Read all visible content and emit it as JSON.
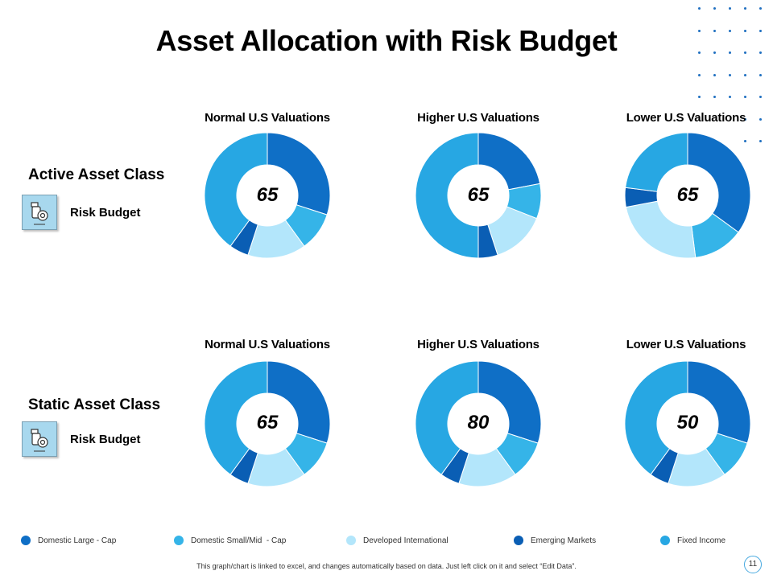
{
  "title": "Asset Allocation with Risk Budget",
  "rows": [
    {
      "label": "Active Asset Class",
      "risk_label": "Risk Budget"
    },
    {
      "label": "Static Asset Class",
      "risk_label": "Risk Budget"
    }
  ],
  "chart_data": [
    {
      "type": "donut",
      "title": "Normal U.S Valuations",
      "center_label": "65",
      "categories": [
        "Domestic Large - Cap",
        "Domestic Small/Mid - Cap",
        "Developed International",
        "Emerging Markets",
        "Fixed Income"
      ],
      "values": [
        30,
        10,
        15,
        5,
        40
      ]
    },
    {
      "type": "donut",
      "title": "Higher U.S Valuations",
      "center_label": "65",
      "categories": [
        "Domestic Large - Cap",
        "Domestic Small/Mid - Cap",
        "Developed International",
        "Emerging Markets",
        "Fixed Income"
      ],
      "values": [
        22,
        9,
        14,
        5,
        50
      ]
    },
    {
      "type": "donut",
      "title": "Lower U.S Valuations",
      "center_label": "65",
      "categories": [
        "Domestic Large - Cap",
        "Domestic Small/Mid - Cap",
        "Developed International",
        "Emerging Markets",
        "Fixed Income"
      ],
      "values": [
        35,
        13,
        24,
        5,
        23
      ]
    },
    {
      "type": "donut",
      "title": "Normal U.S Valuations",
      "center_label": "65",
      "categories": [
        "Domestic Large - Cap",
        "Domestic Small/Mid - Cap",
        "Developed International",
        "Emerging Markets",
        "Fixed Income"
      ],
      "values": [
        30,
        10,
        15,
        5,
        40
      ]
    },
    {
      "type": "donut",
      "title": "Higher U.S Valuations",
      "center_label": "80",
      "categories": [
        "Domestic Large - Cap",
        "Domestic Small/Mid - Cap",
        "Developed International",
        "Emerging Markets",
        "Fixed Income"
      ],
      "values": [
        30,
        10,
        15,
        5,
        40
      ]
    },
    {
      "type": "donut",
      "title": "Lower U.S Valuations",
      "center_label": "50",
      "categories": [
        "Domestic Large - Cap",
        "Domestic Small/Mid - Cap",
        "Developed International",
        "Emerging Markets",
        "Fixed Income"
      ],
      "values": [
        30,
        10,
        15,
        5,
        40
      ]
    }
  ],
  "legend": [
    {
      "label": "Domestic Large - Cap",
      "color": "#0f6fc6"
    },
    {
      "label": "Domestic Small/Mid  - Cap",
      "color": "#35b4e8"
    },
    {
      "label": "Developed International",
      "color": "#b3e6fb"
    },
    {
      "label": "Emerging Markets",
      "color": "#0a5eb4"
    },
    {
      "label": "Fixed Income",
      "color": "#27a7e3"
    }
  ],
  "series_colors": [
    "#0f6fc6",
    "#35b4e8",
    "#b3e6fb",
    "#0a5eb4",
    "#27a7e3"
  ],
  "footnote": "This graph/chart is linked to excel, and changes automatically based on data. Just left click on it and select “Edit Data”.",
  "page_number": "11"
}
